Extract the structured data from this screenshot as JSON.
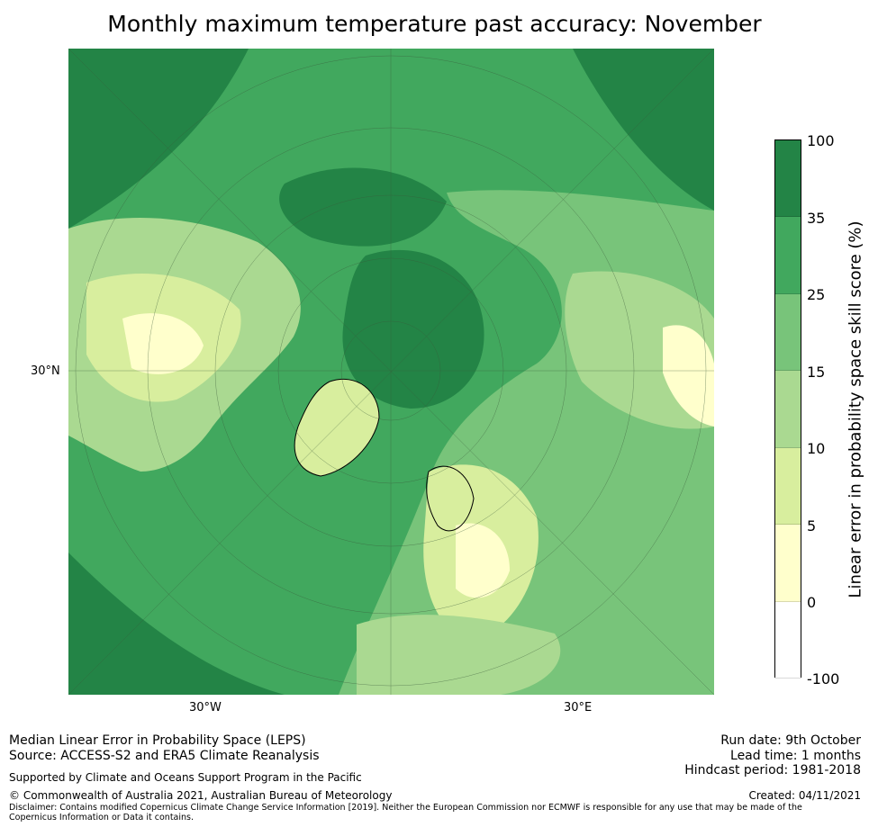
{
  "title": "Monthly maximum temperature past accuracy: November",
  "map": {
    "axis_labels": {
      "left": "30°N",
      "bottom_left": "30°W",
      "bottom_right": "30°E"
    },
    "colors": {
      "c35_100": "#238446",
      "c25_35": "#41a85e",
      "c15_25": "#78c47a",
      "c10_15": "#aad991",
      "c5_10": "#d8ee9e",
      "c0_5": "#ffffcc",
      "cneg": "#ffffff"
    }
  },
  "colorbar": {
    "title": "Linear error in probability space skill score (%)",
    "ticks": [
      "100",
      "35",
      "25",
      "15",
      "10",
      "5",
      "0",
      "-100"
    ],
    "bins": [
      {
        "range": "35–100",
        "color": "#238446"
      },
      {
        "range": "25–35",
        "color": "#41a85e"
      },
      {
        "range": "15–25",
        "color": "#78c47a"
      },
      {
        "range": "10–15",
        "color": "#aad991"
      },
      {
        "range": "5–10",
        "color": "#d8ee9e"
      },
      {
        "range": "0–5",
        "color": "#ffffcc"
      },
      {
        "range": "-100–0",
        "color": "#ffffff"
      }
    ]
  },
  "footer": {
    "line1": "Median Linear Error in Probability Space (LEPS)",
    "line2": "Source: ACCESS-S2 and ERA5 Climate Reanalysis",
    "line3": "Supported by Climate and Oceans Support Program in the Pacific",
    "copyright": "© Commonwealth of Australia 2021, Australian Bureau of Meteorology",
    "disclaimer": "Disclaimer: Contains modified Copernicus Climate Change Service Information [2019]. Neither the European Commission nor ECMWF is responsible for any use that may be made of the Copernicus Information or Data it contains.",
    "run_date": "Run date: 9th October",
    "lead_time": "Lead time: 1 months",
    "hindcast": "Hindcast period: 1981-2018",
    "created": "Created: 04/11/2021"
  }
}
